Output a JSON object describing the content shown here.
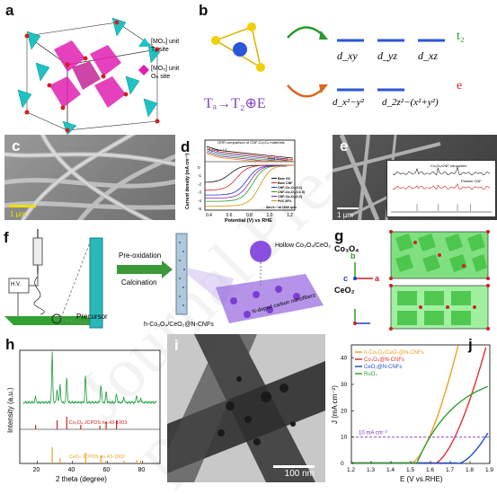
{
  "watermark": "Journal Pre-proof",
  "panel_a": {
    "label": "a",
    "legend": [
      {
        "unit": "[MO₄] unit",
        "site": "Tₐ site",
        "color": "#1fc2c2"
      },
      {
        "unit": "[MO₆] unit",
        "site": "Oₕ site",
        "color": "#e020b0"
      }
    ]
  },
  "panel_b": {
    "label": "b",
    "orbitals_t2": [
      "d_xy",
      "d_yz",
      "d_xz"
    ],
    "orbitals_e": [
      "d_x²−y²",
      "d_2z²−(x²+y²)"
    ],
    "t2_label": "t₂",
    "e_label": "e",
    "split_text": "Tₐ→T₂⊕E"
  },
  "panel_c": {
    "label": "c",
    "scale": "1 µm"
  },
  "panel_d": {
    "label": "d",
    "title": "ORR comparison of CNF-Co₃O₄ materials",
    "ring_current": "Ring current",
    "disk_current": "Disk current",
    "ylabel": "Current density (mA cm⁻²)",
    "xlabel": "Potential (V) vs RHE",
    "ring_scale": "*I_Ring × 1.5",
    "conditions": "5mVs⁻¹ at  1600 rpm",
    "xticks": [
      "0.4",
      "0.6",
      "0.8",
      "1.0",
      "1.2"
    ],
    "yticks": [
      "0",
      "-1",
      "-2",
      "-3",
      "-4",
      "-5"
    ],
    "legend": [
      {
        "name": "Bare GC",
        "color": "#111111"
      },
      {
        "name": "Bare CNF",
        "color": "#e02020"
      },
      {
        "name": "CNF-Co₃O₄(1:1)",
        "color": "#2030d0"
      },
      {
        "name": "CNF-Co₃O₄(1:1.5)",
        "color": "#20a020"
      },
      {
        "name": "CNF-Co₃O₄(1:2)",
        "color": "#9020b0"
      },
      {
        "name": "Pt/C 20%",
        "color": "#e08a00"
      }
    ]
  },
  "panel_e": {
    "label": "e",
    "scale": "1 µm",
    "inset_label": "Co₃O₄/CNF nanowires",
    "inset_label2": "Pristine CNF"
  },
  "panel_f": {
    "label": "f",
    "step1": "Pre-oxidation",
    "step2": "Calcination",
    "precursor": "Precursor",
    "product": "h-Co₃O₄/CeO₂@N-CNFs",
    "hollow": "Hollow Co₃O₄/CeO₂",
    "cnf": "N-doped carbon nanofibers",
    "hv": "H.V."
  },
  "panel_g": {
    "label": "g",
    "top": "Co₃O₄",
    "bottom": "CeO₂",
    "axes": [
      "b",
      "c",
      "a"
    ]
  },
  "panel_h": {
    "label": "h",
    "ylabel": "Intensity (a.u.)",
    "xlabel": "2 theta (degree)",
    "ref1": "Co₃O₄ JCPDS no.43-1003",
    "ref2": "CeO₂ JCPDS no.43-1002",
    "xticks": [
      "20",
      "40",
      "60",
      "80"
    ]
  },
  "panel_i": {
    "label": "i",
    "scale": "100 nm"
  },
  "panel_j": {
    "label": "j",
    "ylabel": "J (mA cm⁻²)",
    "xlabel": "E (V vs.RHE)",
    "marker": "10 mA cm⁻²",
    "xticks": [
      "1.2",
      "1.3",
      "1.4",
      "1.5",
      "1.6",
      "1.7",
      "1.8",
      "1.9"
    ],
    "yticks": [
      "0",
      "10",
      "20",
      "30",
      "40"
    ],
    "legend": [
      {
        "name": "h-Co₃O₄/CeO₂@N-CNFs",
        "color": "#f0a020"
      },
      {
        "name": "Co₃O₄@N-CNFs",
        "color": "#e03030"
      },
      {
        "name": "CeO₂@N-CNFs",
        "color": "#2050d0"
      },
      {
        "name": "RuO₂",
        "color": "#30a030"
      }
    ]
  }
}
